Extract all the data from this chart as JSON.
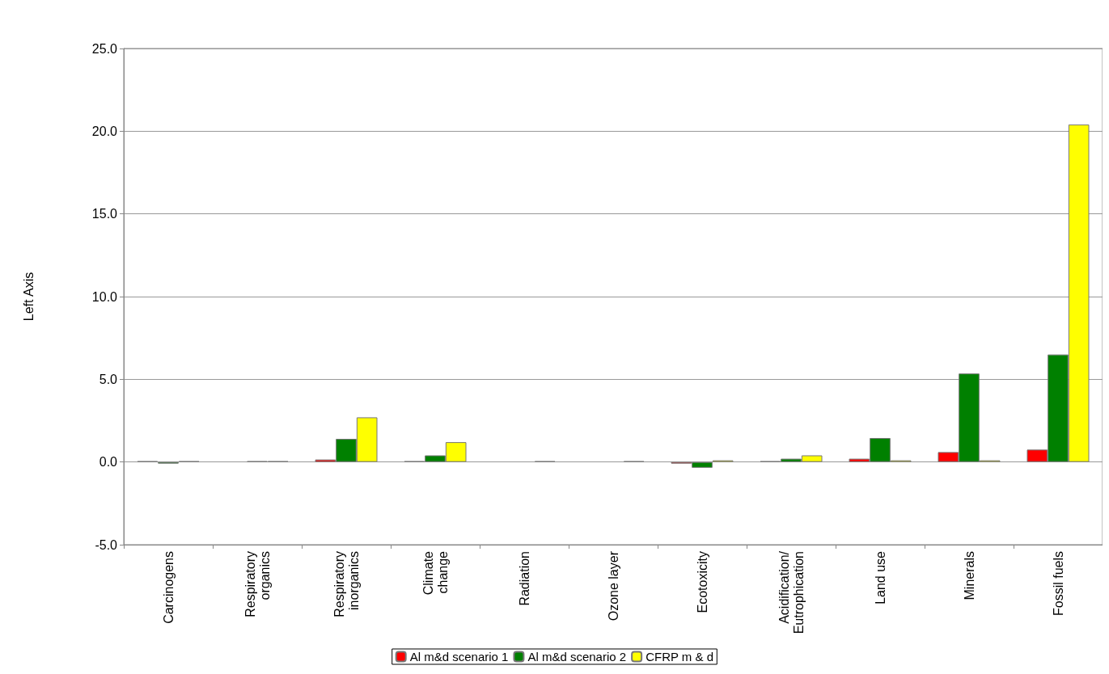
{
  "chart_data": {
    "type": "bar",
    "ylabel": "Left Axis",
    "categories": [
      "Carcinogens",
      "Respiratory\norganics",
      "Respiratory\ninorganics",
      "Climate\nchange",
      "Radiation",
      "Ozone layer",
      "Ecotoxicity",
      "Acidification/\nEutrophication",
      "Land use",
      "Minerals",
      "Fossil fuels"
    ],
    "series": [
      {
        "name": "Al m&d scenario 1",
        "color": "#ff0000",
        "values": [
          0.05,
          null,
          0.15,
          0.05,
          null,
          null,
          -0.1,
          0.05,
          0.2,
          0.6,
          0.75
        ]
      },
      {
        "name": "Al m&d scenario 2",
        "color": "#008000",
        "values": [
          -0.1,
          0.05,
          1.4,
          0.4,
          null,
          null,
          -0.35,
          0.2,
          1.45,
          5.35,
          6.5
        ]
      },
      {
        "name": "CFRP m & d",
        "color": "#ffff00",
        "values": [
          0.05,
          0.05,
          2.7,
          1.2,
          0.05,
          0.05,
          0.1,
          0.4,
          0.1,
          0.1,
          20.4
        ]
      }
    ],
    "ylim": [
      -5,
      25
    ],
    "yticks": [
      {
        "value": -5,
        "label": "-5.0"
      },
      {
        "value": 0,
        "label": "0.0"
      },
      {
        "value": 5,
        "label": "5.0"
      },
      {
        "value": 10,
        "label": "10.0"
      },
      {
        "value": 15,
        "label": "15.0"
      },
      {
        "value": 20,
        "label": "20.0"
      },
      {
        "value": 25,
        "label": "25.0"
      }
    ],
    "grid": "y",
    "legend": "bottom"
  }
}
